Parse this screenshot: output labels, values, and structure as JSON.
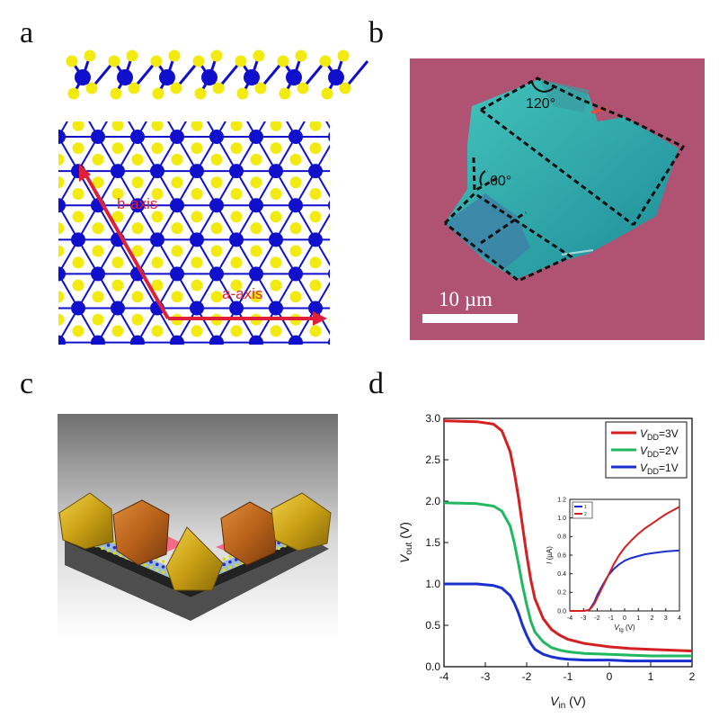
{
  "panels": {
    "a": {
      "letter": "a",
      "labels": {
        "b_axis": "b-axis",
        "a_axis": "a-axis"
      },
      "colors": {
        "metal_atom": "#1010cc",
        "chalcogen_atom": "#f2ea10",
        "axis_arrow": "#e0203a"
      }
    },
    "b": {
      "letter": "b",
      "angles": {
        "top": "120°",
        "left": "60°"
      },
      "scale_bar": "10 µm",
      "colors": {
        "substrate": "#b05272",
        "flake": "#2aa0a0",
        "outline": "#111111"
      }
    },
    "c": {
      "letter": "c",
      "colors": {
        "contact_gold": "#c9a014",
        "contact_copper": "#b8621a",
        "substrate": "#555555"
      }
    },
    "d": {
      "letter": "d"
    }
  },
  "chart_data": [
    {
      "type": "line",
      "xlabel_main": "V",
      "xlabel_sub": "in",
      "xlabel_unit": " (V)",
      "ylabel_main": "V",
      "ylabel_sub": "out",
      "ylabel_unit": " (V)",
      "xlim": [
        -4,
        2
      ],
      "ylim": [
        0,
        3
      ],
      "xticks": [
        -4,
        -3,
        -2,
        -1,
        0,
        1,
        2
      ],
      "yticks": [
        0.0,
        0.5,
        1.0,
        1.5,
        2.0,
        2.5,
        3.0
      ],
      "xtick_labels": [
        "-4",
        "-3",
        "-2",
        "-1",
        "0",
        "1",
        "2"
      ],
      "ytick_labels": [
        "0.0",
        "0.5",
        "1.0",
        "1.5",
        "2.0",
        "2.5",
        "3.0"
      ],
      "legend_position": "top-right",
      "series": [
        {
          "name_main": "V",
          "name_sub": "DD",
          "name_tail": "=3V",
          "color": "#d42020",
          "x": [
            -4,
            -3.2,
            -2.8,
            -2.6,
            -2.4,
            -2.3,
            -2.2,
            -2.1,
            -2.0,
            -1.9,
            -1.8,
            -1.6,
            -1.4,
            -1.2,
            -1.0,
            -0.6,
            0,
            0.5,
            1.0,
            2.0
          ],
          "y": [
            2.97,
            2.96,
            2.93,
            2.85,
            2.6,
            2.35,
            2.05,
            1.7,
            1.35,
            1.05,
            0.82,
            0.58,
            0.45,
            0.38,
            0.33,
            0.28,
            0.24,
            0.22,
            0.21,
            0.19
          ]
        },
        {
          "name_main": "V",
          "name_sub": "DD",
          "name_tail": "=2V",
          "color": "#20b860",
          "x": [
            -4,
            -3.2,
            -2.8,
            -2.6,
            -2.4,
            -2.3,
            -2.2,
            -2.1,
            -2.0,
            -1.9,
            -1.8,
            -1.6,
            -1.4,
            -1.2,
            -1.0,
            -0.6,
            0,
            0.5,
            1.0,
            2.0
          ],
          "y": [
            1.98,
            1.97,
            1.94,
            1.88,
            1.7,
            1.5,
            1.25,
            0.98,
            0.75,
            0.55,
            0.42,
            0.3,
            0.23,
            0.2,
            0.18,
            0.16,
            0.15,
            0.14,
            0.13,
            0.13
          ]
        },
        {
          "name_main": "V",
          "name_sub": "DD",
          "name_tail": "=1V",
          "color": "#1a2fd0",
          "x": [
            -4,
            -3.2,
            -2.8,
            -2.6,
            -2.4,
            -2.3,
            -2.2,
            -2.1,
            -2.0,
            -1.9,
            -1.8,
            -1.6,
            -1.4,
            -1.2,
            -1.0,
            -0.6,
            0,
            0.5,
            1.0,
            2.0
          ],
          "y": [
            1.0,
            1.0,
            0.98,
            0.95,
            0.86,
            0.77,
            0.65,
            0.5,
            0.38,
            0.28,
            0.21,
            0.15,
            0.12,
            0.1,
            0.09,
            0.08,
            0.08,
            0.07,
            0.07,
            0.07
          ]
        }
      ]
    },
    {
      "type": "line",
      "xlabel_main": "V",
      "xlabel_sub": "tg",
      "xlabel_unit": " (V)",
      "ylabel_main": "I",
      "ylabel_unit": " (µA)",
      "xlim": [
        -4,
        4
      ],
      "ylim": [
        0,
        1.2
      ],
      "xticks": [
        -4,
        -3,
        -2,
        -1,
        0,
        1,
        2,
        3,
        4
      ],
      "yticks": [
        0.0,
        0.2,
        0.4,
        0.6,
        0.8,
        1.0,
        1.2
      ],
      "xtick_labels": [
        "-4",
        "-3",
        "-2",
        "-1",
        "0",
        "1",
        "2",
        "3",
        "4"
      ],
      "ytick_labels": [
        "0.0",
        "0.2",
        "0.4",
        "0.6",
        "0.8",
        "1.0",
        "1.2"
      ],
      "legend_position": "top-left",
      "series": [
        {
          "name": "1",
          "color": "#1a2fd0",
          "x": [
            -4,
            -3,
            -2.6,
            -2.4,
            -2.2,
            -2.0,
            -1.6,
            -1.2,
            -0.8,
            -0.4,
            0,
            0.5,
            1,
            1.5,
            2,
            2.5,
            3,
            4
          ],
          "y": [
            0,
            0,
            0.01,
            0.05,
            0.1,
            0.17,
            0.28,
            0.38,
            0.45,
            0.5,
            0.54,
            0.57,
            0.59,
            0.61,
            0.62,
            0.63,
            0.64,
            0.65
          ]
        },
        {
          "name": "2",
          "color": "#d42020",
          "x": [
            -4,
            -3,
            -2.6,
            -2.4,
            -2.2,
            -2.0,
            -1.6,
            -1.2,
            -0.8,
            -0.4,
            0,
            0.5,
            1,
            1.5,
            2,
            2.5,
            3,
            3.5,
            4
          ],
          "y": [
            0,
            0,
            0.01,
            0.04,
            0.08,
            0.14,
            0.26,
            0.38,
            0.5,
            0.6,
            0.68,
            0.76,
            0.83,
            0.89,
            0.94,
            0.99,
            1.04,
            1.08,
            1.12
          ]
        }
      ]
    }
  ]
}
